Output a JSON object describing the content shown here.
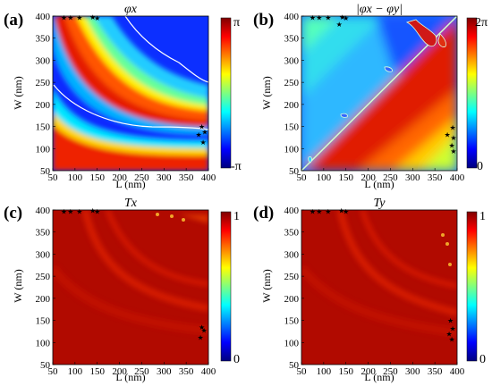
{
  "chart_data": [
    {
      "type": "heatmap",
      "panel_label": "(a)",
      "title": "φx",
      "xlabel": "L (nm)",
      "ylabel": "W (nm)",
      "xlim": [
        50,
        400
      ],
      "ylim": [
        50,
        400
      ],
      "xticks": [
        "50",
        "100",
        "150",
        "200",
        "250",
        "300",
        "350",
        "400"
      ],
      "yticks": [
        "50",
        "100",
        "150",
        "200",
        "250",
        "300",
        "350",
        "400"
      ],
      "colorbar": {
        "min_label": "-π",
        "max_label": "π",
        "colormap": "jet"
      },
      "markers": [
        {
          "L": 75,
          "W": 397
        },
        {
          "L": 90,
          "W": 397
        },
        {
          "L": 110,
          "W": 397
        },
        {
          "L": 140,
          "W": 398
        },
        {
          "L": 150,
          "W": 396
        },
        {
          "L": 385,
          "W": 150
        },
        {
          "L": 392,
          "W": 138
        },
        {
          "L": 378,
          "W": 132
        },
        {
          "L": 388,
          "W": 115
        }
      ]
    },
    {
      "type": "heatmap",
      "panel_label": "(b)",
      "title": "|φx − φy|",
      "xlabel": "L (nm)",
      "ylabel": "W (nm)",
      "xlim": [
        50,
        400
      ],
      "ylim": [
        50,
        400
      ],
      "xticks": [
        "50",
        "100",
        "150",
        "200",
        "250",
        "300",
        "350",
        "400"
      ],
      "yticks": [
        "50",
        "100",
        "150",
        "200",
        "250",
        "300",
        "350",
        "400"
      ],
      "colorbar": {
        "min_label": "0",
        "max_label": "2π",
        "colormap": "jet"
      },
      "markers": [
        {
          "L": 75,
          "W": 397
        },
        {
          "L": 90,
          "W": 397
        },
        {
          "L": 110,
          "W": 397
        },
        {
          "L": 135,
          "W": 382
        },
        {
          "L": 142,
          "W": 398
        },
        {
          "L": 150,
          "W": 396
        },
        {
          "L": 378,
          "W": 132
        },
        {
          "L": 390,
          "W": 148
        },
        {
          "L": 392,
          "W": 125
        },
        {
          "L": 388,
          "W": 108
        },
        {
          "L": 392,
          "W": 95
        }
      ]
    },
    {
      "type": "heatmap",
      "panel_label": "(c)",
      "title": "Tx",
      "xlabel": "L (nm)",
      "ylabel": "W (nm)",
      "xlim": [
        50,
        400
      ],
      "ylim": [
        50,
        400
      ],
      "xticks": [
        "50",
        "100",
        "150",
        "200",
        "250",
        "300",
        "350",
        "400"
      ],
      "yticks": [
        "50",
        "100",
        "150",
        "200",
        "250",
        "300",
        "350",
        "400"
      ],
      "colorbar": {
        "min_label": "0",
        "max_label": "1",
        "colormap": "jet"
      },
      "markers": [
        {
          "L": 75,
          "W": 397
        },
        {
          "L": 90,
          "W": 397
        },
        {
          "L": 110,
          "W": 397
        },
        {
          "L": 140,
          "W": 399
        },
        {
          "L": 150,
          "W": 397
        },
        {
          "L": 385,
          "W": 135
        },
        {
          "L": 390,
          "W": 128
        },
        {
          "L": 382,
          "W": 112
        }
      ]
    },
    {
      "type": "heatmap",
      "panel_label": "(d)",
      "title": "Ty",
      "xlabel": "L (nm)",
      "ylabel": "W (nm)",
      "xlim": [
        50,
        400
      ],
      "ylim": [
        50,
        400
      ],
      "xticks": [
        "50",
        "100",
        "150",
        "200",
        "250",
        "300",
        "350",
        "400"
      ],
      "yticks": [
        "50",
        "100",
        "150",
        "200",
        "250",
        "300",
        "350",
        "400"
      ],
      "colorbar": {
        "min_label": "0",
        "max_label": "1",
        "colormap": "jet"
      },
      "markers": [
        {
          "L": 75,
          "W": 397
        },
        {
          "L": 90,
          "W": 397
        },
        {
          "L": 110,
          "W": 397
        },
        {
          "L": 140,
          "W": 399
        },
        {
          "L": 150,
          "W": 397
        },
        {
          "L": 385,
          "W": 150
        },
        {
          "L": 390,
          "W": 132
        },
        {
          "L": 382,
          "W": 120
        },
        {
          "L": 388,
          "W": 108
        }
      ]
    }
  ]
}
